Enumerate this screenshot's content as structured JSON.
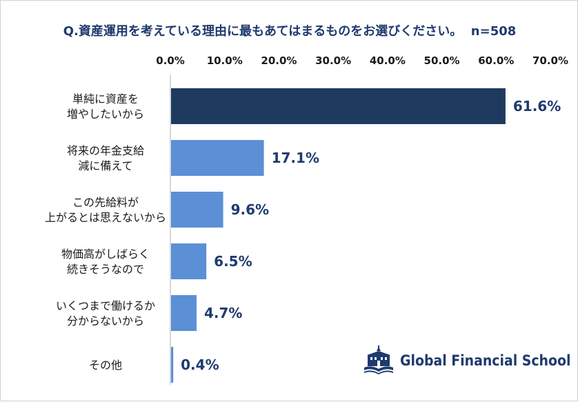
{
  "chart_data": {
    "type": "bar",
    "orientation": "horizontal",
    "title": "Q.資産運用を考えている理由に最もあてはまるものをお選びください。",
    "sample_size": "n=508",
    "categories": [
      [
        "単純に資産を",
        "増やしたいから"
      ],
      [
        "将来の年金支給",
        "減に備えて"
      ],
      [
        "この先給料が",
        "上がるとは思えないから"
      ],
      [
        "物価高がしばらく",
        "続きそうなので"
      ],
      [
        "いくつまで働けるか",
        "分からないから"
      ],
      [
        "その他"
      ]
    ],
    "values": [
      61.6,
      17.1,
      9.6,
      6.5,
      4.7,
      0.4
    ],
    "value_labels": [
      "61.6%",
      "17.1%",
      "9.6%",
      "6.5%",
      "4.7%",
      "0.4%"
    ],
    "xlim": [
      0,
      70
    ],
    "x_ticks": [
      "0.0%",
      "10.0%",
      "20.0%",
      "30.0%",
      "40.0%",
      "50.0%",
      "60.0%",
      "70.0%"
    ],
    "axis_position": "top",
    "grid": false,
    "legend": "none",
    "colors": {
      "highlight": "#1f3a5f",
      "bar": "#5b8fd6",
      "text": "#1f3a6e"
    }
  },
  "logo": {
    "text": "Global Financial School",
    "icon": "school-building-book-icon"
  }
}
